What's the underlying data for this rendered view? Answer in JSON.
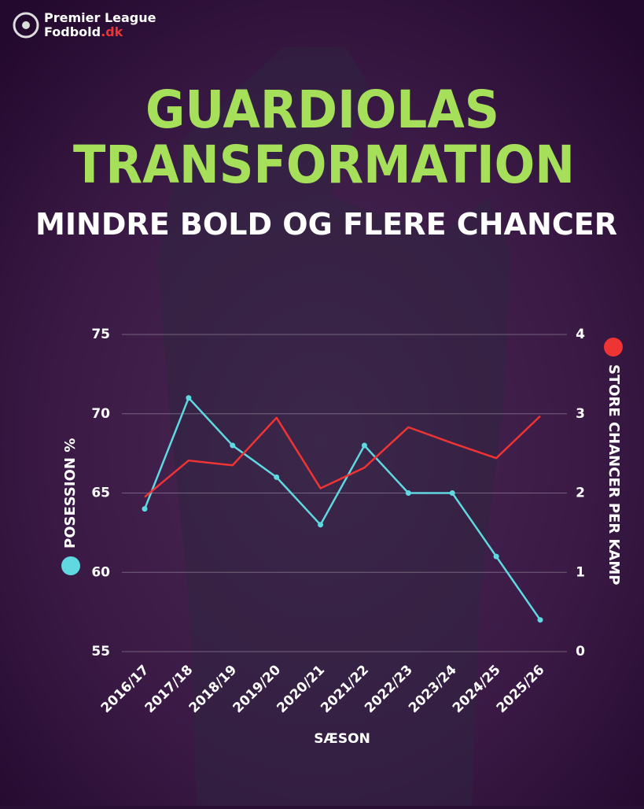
{
  "brand": {
    "line1": "Premier League",
    "line2": "Fodbold",
    "suffix": ".dk"
  },
  "chart_data": {
    "type": "line",
    "title_lines": [
      "GUARDIOLAS",
      "TRANSFORMATION"
    ],
    "subtitle": "MINDRE BOLD OG FLERE CHANCER",
    "x_label": "SÆSON",
    "categories": [
      "2016/17",
      "2017/18",
      "2018/19",
      "2019/20",
      "2020/21",
      "2021/22",
      "2022/23",
      "2023/24",
      "2024/25",
      "2025/26"
    ],
    "series": [
      {
        "name": "POSESSION %",
        "color": "#5fd8e0",
        "axis": "y",
        "marker": true,
        "values": [
          64,
          71,
          68,
          66,
          63,
          68,
          65,
          65,
          61,
          57
        ]
      },
      {
        "name": "STORE CHANCER PER KAMP",
        "color": "#ef3434",
        "axis": "y2",
        "marker": false,
        "values": [
          1.95,
          2.41,
          2.35,
          2.95,
          2.06,
          2.32,
          2.83,
          2.63,
          2.44,
          2.97
        ]
      }
    ],
    "ylim": [
      55,
      75
    ],
    "yticks": [
      55,
      60,
      65,
      70,
      75
    ],
    "y2lim": [
      0,
      4
    ],
    "y2ticks": [
      0,
      1,
      2,
      3,
      4
    ],
    "grid": true
  }
}
